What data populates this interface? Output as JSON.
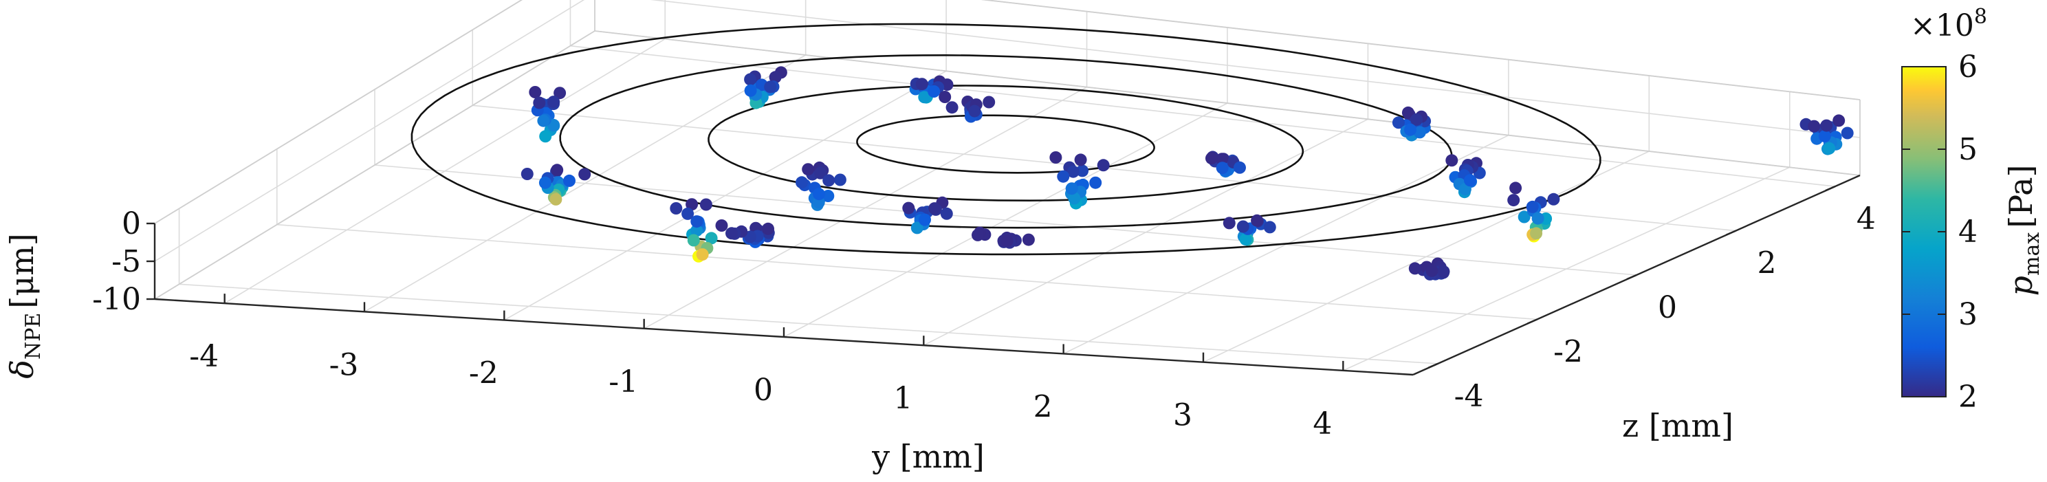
{
  "chart_data": {
    "type": "scatter",
    "projection": "3d",
    "x_axis": {
      "label": "y [mm]",
      "range": [
        -4.5,
        4.5
      ],
      "ticks": [
        "-4",
        "-3",
        "-2",
        "-1",
        "0",
        "1",
        "2",
        "3",
        "4"
      ]
    },
    "z_axis": {
      "label": "z [mm]",
      "range": [
        -4.5,
        4.5
      ],
      "ticks": [
        "-4",
        "-2",
        "0",
        "2",
        "4"
      ]
    },
    "v_axis": {
      "label_symbol": "δ",
      "label_sub": "NPE",
      "label_unit": "[μm]",
      "range": [
        -10,
        0
      ],
      "ticks": [
        "0",
        "-5",
        "-10"
      ]
    },
    "colorbar": {
      "label_symbol": "p",
      "label_sub": "max",
      "label_unit": "[Pa]",
      "scale_text": "×10",
      "scale_exp": "8",
      "range": [
        2,
        6
      ],
      "ticks": [
        "2",
        "3",
        "4",
        "5",
        "6"
      ],
      "colormap": "parula"
    },
    "rings": [
      {
        "name": "ring-1",
        "radius": 1.0
      },
      {
        "name": "ring-2",
        "radius": 2.0
      },
      {
        "name": "ring-3",
        "radius": 3.0
      },
      {
        "name": "ring-4",
        "radius": 4.0
      }
    ],
    "grid": true,
    "clusters": [
      {
        "x": 0.6,
        "z": -0.3,
        "tip": -6.5,
        "pmax": 3.8
      },
      {
        "x": 1.5,
        "z": 0.2,
        "tip": -1.8,
        "pmax": 3.0
      },
      {
        "x": -0.7,
        "z": 1.3,
        "tip": -2.0,
        "pmax": 2.5
      },
      {
        "x": -0.9,
        "z": -1.2,
        "tip": -5.5,
        "pmax": 3.2
      },
      {
        "x": -1.2,
        "z": 1.8,
        "tip": -2.5,
        "pmax": 4.0
      },
      {
        "x": -2.3,
        "z": 1.5,
        "tip": -4.0,
        "pmax": 4.2
      },
      {
        "x": -3.4,
        "z": 0.4,
        "tip": -6.0,
        "pmax": 3.8
      },
      {
        "x": -2.5,
        "z": -2.0,
        "tip": -4.0,
        "pmax": 5.3
      },
      {
        "x": -1.2,
        "z": -2.8,
        "tip": -7.0,
        "pmax": 6.0
      },
      {
        "x": 0.2,
        "z": -2.3,
        "tip": -3.0,
        "pmax": 3.4
      },
      {
        "x": 2.4,
        "z": -1.9,
        "tip": -3.0,
        "pmax": 4.2
      },
      {
        "x": 3.0,
        "z": 0.8,
        "tip": -4.0,
        "pmax": 3.6
      },
      {
        "x": 3.8,
        "z": -0.1,
        "tip": -6.5,
        "pmax": 6.0
      },
      {
        "x": 2.1,
        "z": 2.3,
        "tip": -3.0,
        "pmax": 3.5
      },
      {
        "x": 4.6,
        "z": 3.6,
        "tip": -4.0,
        "pmax": 3.6
      },
      {
        "x": 4.2,
        "z": -3.2,
        "tip": -1.0,
        "pmax": 2.2
      },
      {
        "x": -0.6,
        "z": -3.4,
        "tip": -2.0,
        "pmax": 2.6
      },
      {
        "x": 1.1,
        "z": -3.1,
        "tip": -1.0,
        "pmax": 2.1
      }
    ]
  }
}
